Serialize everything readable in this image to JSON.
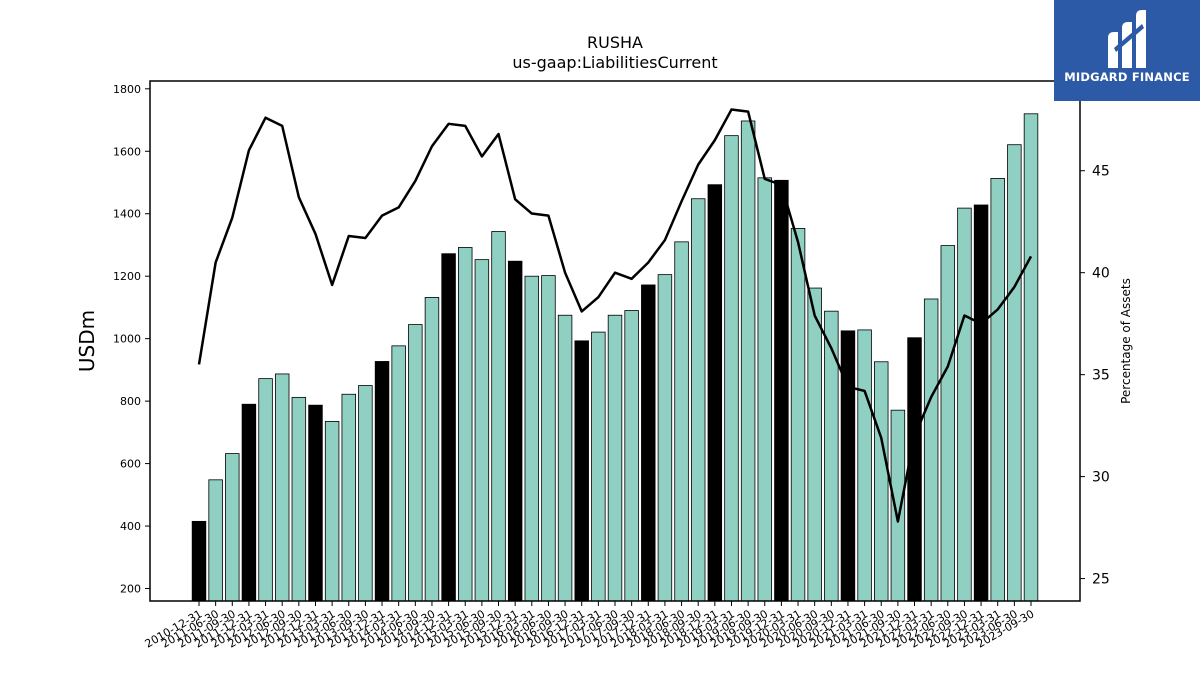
{
  "logo": {
    "text": "MIDGARD FINANCE",
    "background": "#2d5aa6"
  },
  "chart_data": {
    "type": "bar",
    "title": "RUSHA",
    "subtitle": "us-gaap:LiabilitiesCurrent",
    "ylabel": "USDm",
    "y2label": "Percentage of Assets",
    "ylim": [
      160,
      1825
    ],
    "y2lim": [
      23.9,
      49.4
    ],
    "yticks": [
      200,
      400,
      600,
      800,
      1000,
      1200,
      1400,
      1600,
      1800
    ],
    "y2ticks": [
      25,
      30,
      35,
      40,
      45
    ],
    "colors": {
      "bar_default": "#8fd0c3",
      "bar_highlight": "#000000",
      "line": "#000000"
    },
    "categories": [
      "2010-12-31",
      "2011-06-30",
      "2011-09-30",
      "2011-12-31",
      "2012-03-31",
      "2012-06-30",
      "2012-09-30",
      "2012-12-31",
      "2013-03-31",
      "2013-06-30",
      "2013-09-30",
      "2013-12-31",
      "2014-03-31",
      "2014-06-30",
      "2014-09-30",
      "2014-12-31",
      "2015-03-31",
      "2015-06-30",
      "2015-09-30",
      "2015-12-31",
      "2016-03-31",
      "2016-06-30",
      "2016-09-30",
      "2016-12-31",
      "2017-03-31",
      "2017-06-30",
      "2017-09-30",
      "2017-12-31",
      "2018-03-31",
      "2018-06-30",
      "2018-09-30",
      "2018-12-31",
      "2019-03-31",
      "2019-06-30",
      "2019-09-30",
      "2019-12-31",
      "2020-03-31",
      "2020-06-30",
      "2020-09-30",
      "2020-12-31",
      "2021-03-31",
      "2021-06-30",
      "2021-09-30",
      "2021-12-31",
      "2022-03-31",
      "2022-06-30",
      "2022-09-30",
      "2022-12-31",
      "2023-03-31",
      "2023-06-30",
      "2023-09-30"
    ],
    "series": [
      {
        "type": "bar",
        "values": [
          415,
          548,
          632,
          790,
          872,
          887,
          812,
          787,
          735,
          822,
          850,
          927,
          977,
          1045,
          1132,
          1272,
          1292,
          1253,
          1343,
          1248,
          1200,
          1202,
          1075,
          993,
          1021,
          1075,
          1090,
          1172,
          1205,
          1310,
          1448,
          1493,
          1650,
          1697,
          1515,
          1507,
          1353,
          1162,
          1088,
          1025,
          1028,
          926,
          771,
          1003,
          1127,
          1298,
          1418,
          1428,
          1513,
          1621,
          1720
        ],
        "highlight": [
          true,
          false,
          false,
          true,
          false,
          false,
          false,
          true,
          false,
          false,
          false,
          true,
          false,
          false,
          false,
          true,
          false,
          false,
          false,
          true,
          false,
          false,
          false,
          true,
          false,
          false,
          false,
          true,
          false,
          false,
          false,
          true,
          false,
          false,
          false,
          true,
          false,
          false,
          false,
          true,
          false,
          false,
          false,
          true,
          false,
          false,
          false,
          true,
          false,
          false,
          false
        ]
      },
      {
        "type": "line",
        "axis": "right",
        "values": [
          35.5,
          40.5,
          42.7,
          46.0,
          47.6,
          47.2,
          43.7,
          41.9,
          39.4,
          41.8,
          41.7,
          42.8,
          43.2,
          44.5,
          46.2,
          47.3,
          47.2,
          45.7,
          46.8,
          43.6,
          42.9,
          42.8,
          40.0,
          38.1,
          38.8,
          40.0,
          39.7,
          40.5,
          41.6,
          43.5,
          45.3,
          46.5,
          48.0,
          47.9,
          44.6,
          44.3,
          41.5,
          37.9,
          36.3,
          34.4,
          34.2,
          31.9,
          27.8,
          32.0,
          33.9,
          35.4,
          37.9,
          37.5,
          38.2,
          39.3,
          40.8
        ]
      }
    ]
  }
}
